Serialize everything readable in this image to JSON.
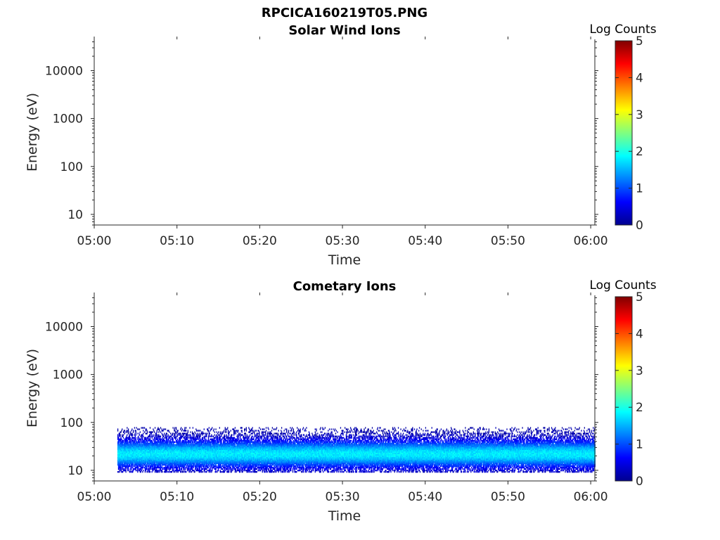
{
  "figure_title": "RPCICA160219T05.PNG",
  "colormap_stops": [
    "#00008f",
    "#0000ff",
    "#00ffff",
    "#ffff00",
    "#ff0000",
    "#800000"
  ],
  "chart_data": [
    {
      "type": "heatmap",
      "title": "Solar Wind Ions",
      "xlabel": "Time",
      "ylabel": "Energy (eV)",
      "x_tick_labels": [
        "05:00",
        "05:10",
        "05:20",
        "05:30",
        "05:40",
        "05:50",
        "06:00"
      ],
      "x_range_minutes": [
        0,
        60.5
      ],
      "y_scale": "log",
      "y_ticks": [
        10,
        100,
        1000,
        10000
      ],
      "y_tick_labels": [
        "10",
        "100",
        "1000",
        "10000"
      ],
      "y_range": [
        6,
        45000
      ],
      "colorbar": {
        "label": "Log Counts",
        "range": [
          0,
          5
        ],
        "tick_labels": [
          "0",
          "1",
          "2",
          "3",
          "4",
          "5"
        ]
      },
      "data_present": false
    },
    {
      "type": "heatmap",
      "title": "Cometary Ions",
      "xlabel": "Time",
      "ylabel": "Energy (eV)",
      "x_tick_labels": [
        "05:00",
        "05:10",
        "05:20",
        "05:30",
        "05:40",
        "05:50",
        "06:00"
      ],
      "x_range_minutes": [
        0,
        60.5
      ],
      "y_scale": "log",
      "y_ticks": [
        10,
        100,
        1000,
        10000
      ],
      "y_tick_labels": [
        "10",
        "100",
        "1000",
        "10000"
      ],
      "y_range": [
        6,
        45000
      ],
      "colorbar": {
        "label": "Log Counts",
        "range": [
          0,
          5
        ],
        "tick_labels": [
          "0",
          "1",
          "2",
          "3",
          "4",
          "5"
        ]
      },
      "data_present": true,
      "data_time_range_minutes": [
        2.8,
        60.5
      ],
      "energy_band_eV": [
        9,
        80
      ],
      "peak_energy_eV": 22,
      "peak_log_counts": 1.8
    }
  ]
}
